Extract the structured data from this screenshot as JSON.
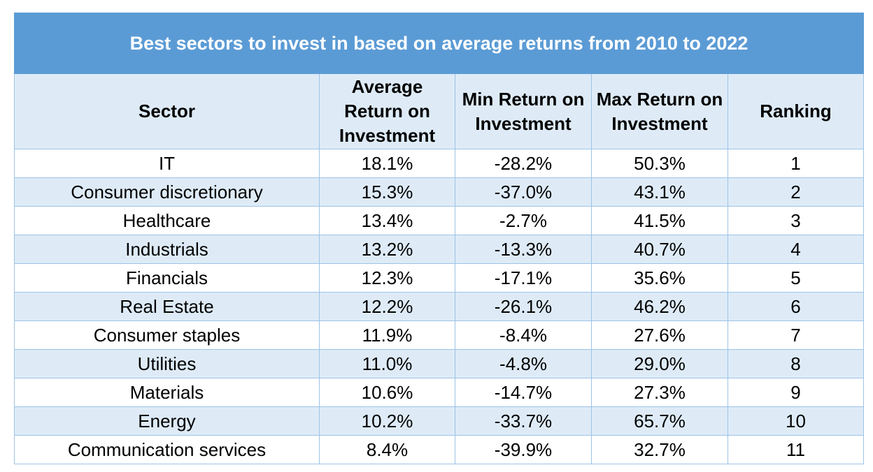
{
  "chart_data": {
    "type": "table",
    "title": "Best sectors to invest in based on average returns from 2010 to 2022",
    "columns": [
      "Sector",
      "Average Return on Investment",
      "Min Return on Investment",
      "Max Return on Investment",
      "Ranking"
    ],
    "rows": [
      [
        "IT",
        "18.1%",
        "-28.2%",
        "50.3%",
        "1"
      ],
      [
        "Consumer discretionary",
        "15.3%",
        "-37.0%",
        "43.1%",
        "2"
      ],
      [
        "Healthcare",
        "13.4%",
        "-2.7%",
        "41.5%",
        "3"
      ],
      [
        "Industrials",
        "13.2%",
        "-13.3%",
        "40.7%",
        "4"
      ],
      [
        "Financials",
        "12.3%",
        "-17.1%",
        "35.6%",
        "5"
      ],
      [
        "Real Estate",
        "12.2%",
        "-26.1%",
        "46.2%",
        "6"
      ],
      [
        "Consumer staples",
        "11.9%",
        "-8.4%",
        "27.6%",
        "7"
      ],
      [
        "Utilities",
        "11.0%",
        "-4.8%",
        "29.0%",
        "8"
      ],
      [
        "Materials",
        "10.6%",
        "-14.7%",
        "27.3%",
        "9"
      ],
      [
        "Energy",
        "10.2%",
        "-33.7%",
        "65.7%",
        "10"
      ],
      [
        "Communication services",
        "8.4%",
        "-39.9%",
        "32.7%",
        "11"
      ]
    ]
  },
  "colors": {
    "title_bg": "#5b9bd5",
    "band_bg": "#deebf7",
    "border": "#9dc3e6"
  }
}
